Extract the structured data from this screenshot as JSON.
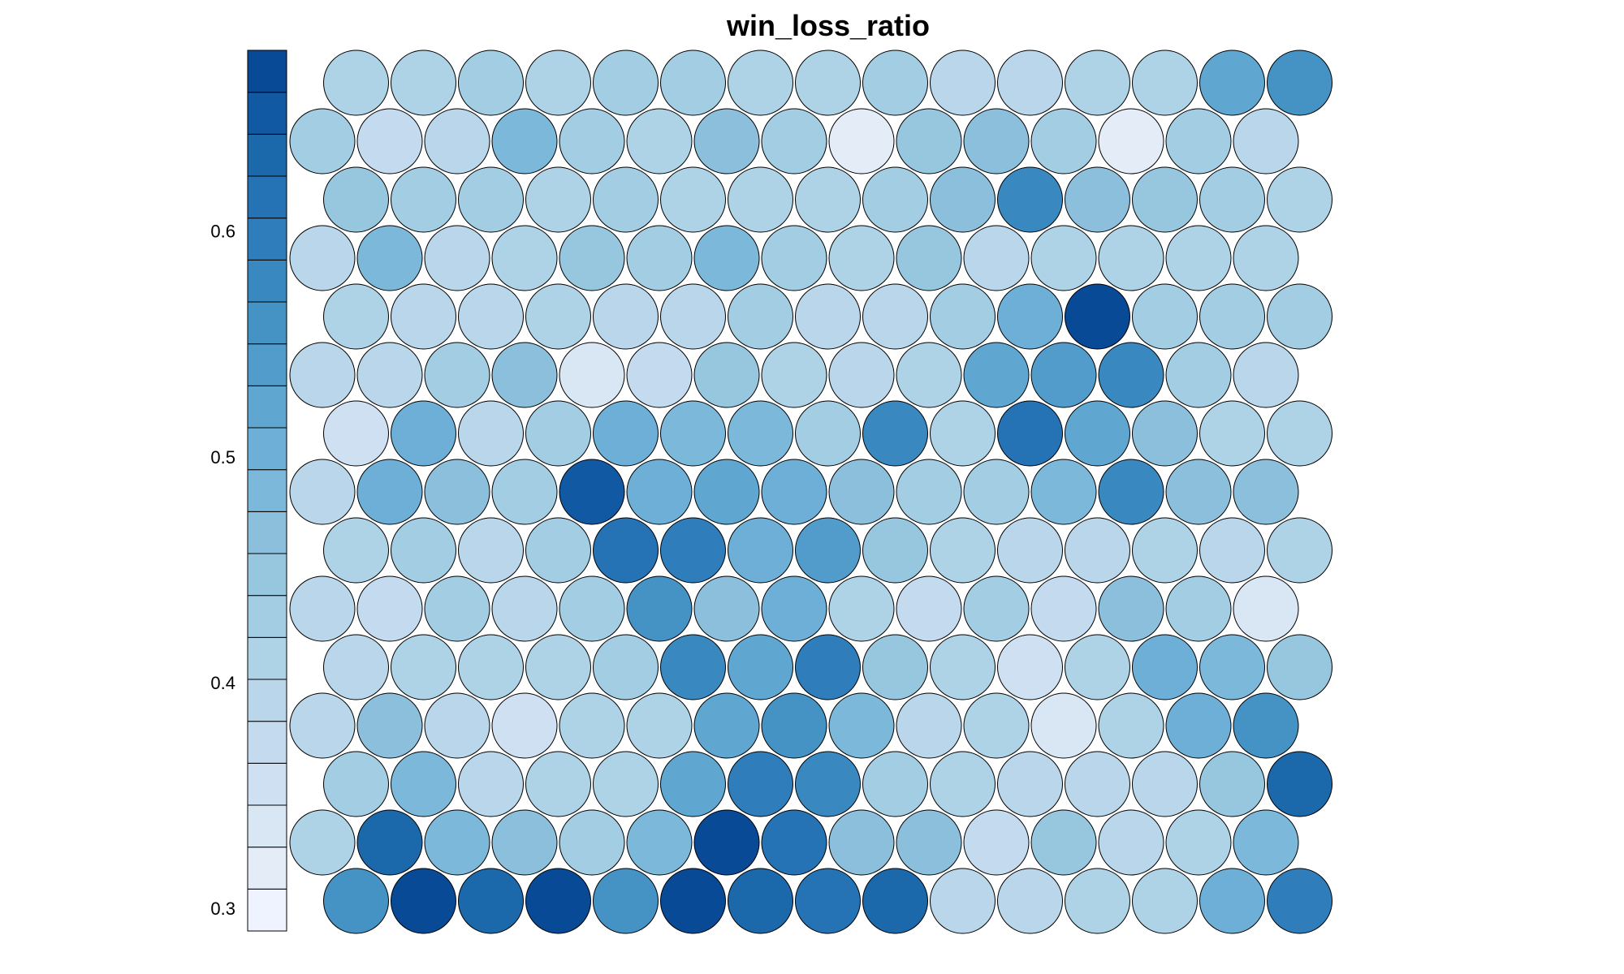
{
  "chart_data": {
    "type": "heatmap",
    "subtype": "som-hexagonal-property-map",
    "title": "win_loss_ratio",
    "grid": {
      "rows": 15,
      "cols": 15,
      "topology": "hexagonal"
    },
    "colorbar": {
      "ticks": [
        0.3,
        0.4,
        0.5,
        0.6
      ],
      "tick_labels": [
        "0.3",
        "0.4",
        "0.5",
        "0.6"
      ],
      "range": [
        0.29,
        0.68
      ],
      "palette": [
        "#eff3ff",
        "#e4ecf8",
        "#d9e6f4",
        "#cfe0f2",
        "#c4daee",
        "#b9d6ea",
        "#aed2e6",
        "#a3cde3",
        "#97c6df",
        "#8bbfdc",
        "#7cb8da",
        "#6dafd7",
        "#5fa6d1",
        "#519cca",
        "#4592c5",
        "#3988c0",
        "#2f7ebb",
        "#2573b4",
        "#1b68ab",
        "#1159a2",
        "#084a96"
      ]
    },
    "values": [
      [
        0.407,
        0.403,
        0.432,
        0.412,
        0.427,
        0.425,
        0.403,
        0.413,
        0.429,
        0.398,
        0.399,
        0.419,
        0.403,
        0.52,
        0.563
      ],
      [
        0.436,
        0.382,
        0.398,
        0.482,
        0.435,
        0.406,
        0.466,
        0.425,
        0.322,
        0.455,
        0.469,
        0.428,
        0.324,
        0.43,
        0.394
      ],
      [
        0.446,
        0.425,
        0.43,
        0.417,
        0.422,
        0.415,
        0.404,
        0.404,
        0.423,
        0.459,
        0.58,
        0.475,
        0.44,
        0.422,
        0.405
      ],
      [
        0.397,
        0.476,
        0.394,
        0.403,
        0.448,
        0.427,
        0.478,
        0.427,
        0.405,
        0.449,
        0.383,
        0.415,
        0.418,
        0.409,
        0.413
      ],
      [
        0.402,
        0.4,
        0.399,
        0.413,
        0.386,
        0.394,
        0.428,
        0.398,
        0.397,
        0.43,
        0.5,
        0.681,
        0.438,
        0.421,
        0.432
      ],
      [
        0.386,
        0.395,
        0.431,
        0.458,
        0.344,
        0.381,
        0.454,
        0.413,
        0.383,
        0.413,
        0.518,
        0.545,
        0.578,
        0.425,
        0.398
      ],
      [
        0.356,
        0.508,
        0.398,
        0.437,
        0.497,
        0.479,
        0.492,
        0.427,
        0.572,
        0.412,
        0.62,
        0.519,
        0.464,
        0.407,
        0.402
      ],
      [
        0.398,
        0.496,
        0.464,
        0.438,
        0.653,
        0.505,
        0.519,
        0.512,
        0.472,
        0.433,
        0.421,
        0.482,
        0.575,
        0.467,
        0.469
      ],
      [
        0.414,
        0.423,
        0.398,
        0.424,
        0.612,
        0.602,
        0.509,
        0.544,
        0.445,
        0.419,
        0.384,
        0.388,
        0.412,
        0.395,
        0.414
      ],
      [
        0.39,
        0.379,
        0.431,
        0.4,
        0.421,
        0.556,
        0.47,
        0.495,
        0.416,
        0.37,
        0.424,
        0.377,
        0.461,
        0.426,
        0.339
      ],
      [
        0.399,
        0.418,
        0.413,
        0.409,
        0.434,
        0.573,
        0.524,
        0.588,
        0.444,
        0.407,
        0.356,
        0.414,
        0.51,
        0.482,
        0.457
      ],
      [
        0.398,
        0.472,
        0.395,
        0.352,
        0.406,
        0.418,
        0.525,
        0.556,
        0.482,
        0.39,
        0.402,
        0.344,
        0.416,
        0.501,
        0.55
      ],
      [
        0.43,
        0.485,
        0.397,
        0.412,
        0.406,
        0.52,
        0.593,
        0.586,
        0.429,
        0.404,
        0.383,
        0.383,
        0.399,
        0.454,
        0.625
      ],
      [
        0.413,
        0.633,
        0.483,
        0.471,
        0.433,
        0.491,
        0.68,
        0.612,
        0.471,
        0.462,
        0.365,
        0.44,
        0.401,
        0.42,
        0.493
      ],
      [
        0.563,
        0.681,
        0.64,
        0.662,
        0.559,
        0.681,
        0.641,
        0.617,
        0.638,
        0.399,
        0.399,
        0.403,
        0.412,
        0.503,
        0.593
      ]
    ]
  }
}
